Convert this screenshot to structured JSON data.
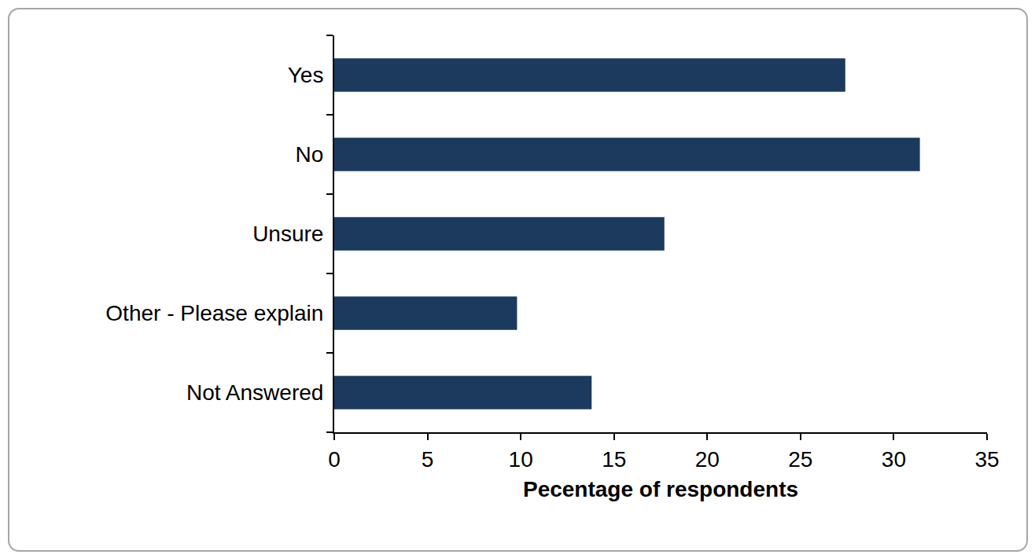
{
  "chart_data": {
    "type": "bar",
    "orientation": "horizontal",
    "categories": [
      "Yes",
      "No",
      "Unsure",
      "Other - Please explain",
      "Not Answered"
    ],
    "values": [
      27.4,
      31.4,
      17.7,
      9.8,
      13.8
    ],
    "color": "#1b3a5e",
    "x_label": "Pecentage of respondents",
    "xlim": [
      0,
      35
    ],
    "xticks": [
      0,
      5,
      10,
      15,
      20,
      25,
      30,
      35
    ],
    "grid": false
  }
}
